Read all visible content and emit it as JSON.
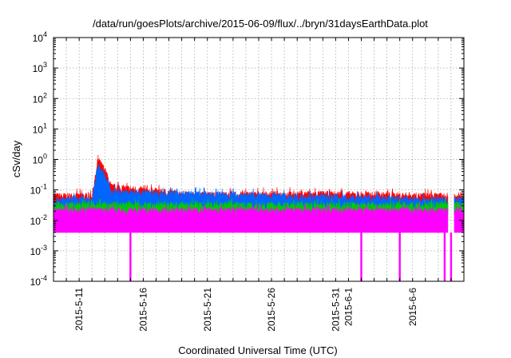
{
  "chart_data": {
    "type": "area",
    "title": "/data/run/goesPlots/archive/2015-06-09/flux/../bryn/31daysEarthData.plot",
    "xlabel": "Coordinated Universal Time (UTC)",
    "ylabel": "cSv/day",
    "yscale": "log",
    "ylim": [
      0.0001,
      10000
    ],
    "y_ticks": [
      {
        "value": 0.0001,
        "base": "10",
        "exp": "-4"
      },
      {
        "value": 0.001,
        "base": "10",
        "exp": "-3"
      },
      {
        "value": 0.01,
        "base": "10",
        "exp": "-2"
      },
      {
        "value": 0.1,
        "base": "10",
        "exp": "-1"
      },
      {
        "value": 1,
        "base": "10",
        "exp": "0"
      },
      {
        "value": 10,
        "base": "10",
        "exp": "1"
      },
      {
        "value": 100,
        "base": "10",
        "exp": "2"
      },
      {
        "value": 1000,
        "base": "10",
        "exp": "3"
      },
      {
        "value": 10000,
        "base": "10",
        "exp": "4"
      }
    ],
    "xlim": [
      "2015-05-09",
      "2015-06-10"
    ],
    "x_tick_labels": [
      "2015-5-11",
      "2015-5-16",
      "2015-5-21",
      "2015-5-26",
      "2015-5-31",
      "2015-6-1",
      "2015-6-6"
    ],
    "x_ticks": [
      {
        "date": "2015-05-11",
        "label": "2015-5-11"
      },
      {
        "date": "2015-05-16",
        "label": "2015-5-16"
      },
      {
        "date": "2015-05-21",
        "label": "2015-5-21"
      },
      {
        "date": "2015-05-26",
        "label": "2015-5-26"
      },
      {
        "date": "2015-05-31",
        "label": "2015-5-31"
      },
      {
        "date": "2015-06-01",
        "label": "2015-6-1"
      },
      {
        "date": "2015-06-06",
        "label": "2015-6-6"
      }
    ],
    "grid": true,
    "series": [
      {
        "color": "#ff0000",
        "typical_value": 0.06,
        "points": [
          {
            "x": "2015-05-12",
            "y": 0.06
          },
          {
            "x": "2015-05-12 12:00",
            "y": 0.9
          },
          {
            "x": "2015-05-13",
            "y": 0.45
          },
          {
            "x": "2015-05-13 12:00",
            "y": 0.12
          },
          {
            "x": "2015-05-20",
            "y": 0.065
          },
          {
            "x": "2015-05-30",
            "y": 0.07
          },
          {
            "x": "2015-06-08",
            "y": 0.06
          }
        ]
      },
      {
        "color": "#0066ff",
        "typical_value": 0.045,
        "points": [
          {
            "x": "2015-05-12",
            "y": 0.045
          },
          {
            "x": "2015-05-12 12:00",
            "y": 0.6
          },
          {
            "x": "2015-05-13",
            "y": 0.3
          },
          {
            "x": "2015-05-13 12:00",
            "y": 0.08
          },
          {
            "x": "2015-06-08",
            "y": 0.045
          }
        ]
      },
      {
        "color": "#00cc00",
        "typical_value": 0.03
      },
      {
        "color": "#ff00ff",
        "typical_value": 0.02,
        "min_value": 0.004,
        "dropouts": [
          "2015-05-15",
          "2015-06-02",
          "2015-06-05",
          "2015-06-08 12:00",
          "2015-06-09"
        ]
      }
    ],
    "data_gap": {
      "from": "2015-06-08 18:00",
      "to": "2015-06-09 06:00"
    }
  }
}
